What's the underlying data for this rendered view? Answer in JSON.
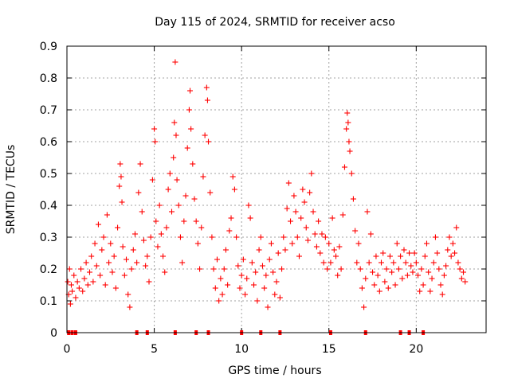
{
  "chart_data": {
    "type": "scatter",
    "title": "Day 115 of 2024, SRMTID for receiver acso",
    "xlabel": "GPS time / hours",
    "ylabel": "SRMTID / TECUs",
    "xlim": [
      0,
      24.0
    ],
    "ylim": [
      0,
      0.9
    ],
    "xticks": [
      0,
      5,
      10,
      15,
      20
    ],
    "xtick_labels": [
      "0",
      "5",
      "10",
      "15",
      "20"
    ],
    "yticks": [
      0,
      0.1,
      0.2,
      0.3,
      0.4,
      0.5,
      0.6,
      0.7,
      0.8,
      0.9
    ],
    "ytick_labels": [
      "0",
      "0.1",
      "0.2",
      "0.3",
      "0.4",
      "0.5",
      "0.6",
      "0.7",
      "0.8",
      "0.9"
    ],
    "grid": true,
    "marker": "+",
    "color": "#ff0000",
    "series": [
      {
        "name": "SRMTID",
        "points": [
          [
            0.05,
            0.16
          ],
          [
            0.1,
            0.12
          ],
          [
            0.15,
            0.2
          ],
          [
            0.2,
            0.09
          ],
          [
            0.25,
            0.15
          ],
          [
            0.3,
            0.13
          ],
          [
            0.4,
            0.18
          ],
          [
            0.5,
            0.11
          ],
          [
            0.6,
            0.16
          ],
          [
            0.7,
            0.14
          ],
          [
            0.8,
            0.2
          ],
          [
            0.9,
            0.13
          ],
          [
            1.0,
            0.17
          ],
          [
            1.1,
            0.22
          ],
          [
            1.2,
            0.15
          ],
          [
            1.3,
            0.19
          ],
          [
            1.4,
            0.24
          ],
          [
            1.5,
            0.16
          ],
          [
            1.6,
            0.28
          ],
          [
            1.7,
            0.21
          ],
          [
            1.8,
            0.34
          ],
          [
            1.9,
            0.18
          ],
          [
            2.0,
            0.26
          ],
          [
            2.1,
            0.3
          ],
          [
            2.2,
            0.15
          ],
          [
            2.3,
            0.37
          ],
          [
            2.4,
            0.22
          ],
          [
            2.5,
            0.28
          ],
          [
            2.6,
            0.19
          ],
          [
            2.7,
            0.24
          ],
          [
            2.8,
            0.14
          ],
          [
            2.9,
            0.33
          ],
          [
            3.0,
            0.46
          ],
          [
            3.05,
            0.53
          ],
          [
            3.1,
            0.49
          ],
          [
            3.15,
            0.41
          ],
          [
            3.2,
            0.27
          ],
          [
            3.3,
            0.18
          ],
          [
            3.4,
            0.23
          ],
          [
            3.5,
            0.12
          ],
          [
            3.6,
            0.08
          ],
          [
            3.7,
            0.2
          ],
          [
            3.8,
            0.26
          ],
          [
            3.9,
            0.31
          ],
          [
            4.0,
            0.22
          ],
          [
            4.1,
            0.44
          ],
          [
            4.2,
            0.53
          ],
          [
            4.3,
            0.38
          ],
          [
            4.4,
            0.29
          ],
          [
            4.5,
            0.21
          ],
          [
            4.6,
            0.24
          ],
          [
            4.7,
            0.16
          ],
          [
            4.8,
            0.3
          ],
          [
            4.9,
            0.48
          ],
          [
            5.0,
            0.64
          ],
          [
            5.05,
            0.6
          ],
          [
            5.1,
            0.35
          ],
          [
            5.2,
            0.27
          ],
          [
            5.3,
            0.4
          ],
          [
            5.4,
            0.31
          ],
          [
            5.5,
            0.24
          ],
          [
            5.6,
            0.19
          ],
          [
            5.7,
            0.33
          ],
          [
            5.8,
            0.45
          ],
          [
            5.9,
            0.5
          ],
          [
            6.0,
            0.38
          ],
          [
            6.1,
            0.55
          ],
          [
            6.15,
            0.66
          ],
          [
            6.2,
            0.85
          ],
          [
            6.25,
            0.62
          ],
          [
            6.3,
            0.48
          ],
          [
            6.4,
            0.4
          ],
          [
            6.5,
            0.3
          ],
          [
            6.6,
            0.22
          ],
          [
            6.7,
            0.35
          ],
          [
            6.8,
            0.43
          ],
          [
            6.9,
            0.58
          ],
          [
            7.0,
            0.7
          ],
          [
            7.05,
            0.76
          ],
          [
            7.1,
            0.64
          ],
          [
            7.2,
            0.53
          ],
          [
            7.3,
            0.42
          ],
          [
            7.4,
            0.35
          ],
          [
            7.5,
            0.28
          ],
          [
            7.6,
            0.2
          ],
          [
            7.7,
            0.33
          ],
          [
            7.8,
            0.49
          ],
          [
            7.9,
            0.62
          ],
          [
            8.0,
            0.77
          ],
          [
            8.05,
            0.73
          ],
          [
            8.1,
            0.6
          ],
          [
            8.2,
            0.44
          ],
          [
            8.3,
            0.3
          ],
          [
            8.4,
            0.2
          ],
          [
            8.5,
            0.14
          ],
          [
            8.6,
            0.23
          ],
          [
            8.7,
            0.1
          ],
          [
            8.8,
            0.17
          ],
          [
            8.9,
            0.12
          ],
          [
            9.0,
            0.2
          ],
          [
            9.1,
            0.26
          ],
          [
            9.2,
            0.15
          ],
          [
            9.3,
            0.32
          ],
          [
            9.4,
            0.36
          ],
          [
            9.5,
            0.49
          ],
          [
            9.6,
            0.45
          ],
          [
            9.7,
            0.3
          ],
          [
            9.8,
            0.21
          ],
          [
            9.9,
            0.14
          ],
          [
            10.0,
            0.18
          ],
          [
            10.1,
            0.23
          ],
          [
            10.2,
            0.12
          ],
          [
            10.3,
            0.17
          ],
          [
            10.4,
            0.4
          ],
          [
            10.5,
            0.36
          ],
          [
            10.6,
            0.22
          ],
          [
            10.7,
            0.15
          ],
          [
            10.8,
            0.19
          ],
          [
            10.9,
            0.1
          ],
          [
            11.0,
            0.26
          ],
          [
            11.1,
            0.3
          ],
          [
            11.2,
            0.21
          ],
          [
            11.3,
            0.14
          ],
          [
            11.4,
            0.18
          ],
          [
            11.5,
            0.08
          ],
          [
            11.6,
            0.23
          ],
          [
            11.7,
            0.28
          ],
          [
            11.8,
            0.19
          ],
          [
            11.9,
            0.12
          ],
          [
            12.0,
            0.16
          ],
          [
            12.1,
            0.25
          ],
          [
            12.2,
            0.11
          ],
          [
            12.3,
            0.2
          ],
          [
            12.4,
            0.3
          ],
          [
            12.5,
            0.26
          ],
          [
            12.6,
            0.39
          ],
          [
            12.7,
            0.47
          ],
          [
            12.8,
            0.35
          ],
          [
            12.9,
            0.28
          ],
          [
            13.0,
            0.43
          ],
          [
            13.1,
            0.38
          ],
          [
            13.2,
            0.3
          ],
          [
            13.3,
            0.24
          ],
          [
            13.4,
            0.36
          ],
          [
            13.5,
            0.45
          ],
          [
            13.6,
            0.41
          ],
          [
            13.7,
            0.33
          ],
          [
            13.8,
            0.29
          ],
          [
            13.9,
            0.44
          ],
          [
            14.0,
            0.5
          ],
          [
            14.1,
            0.38
          ],
          [
            14.2,
            0.31
          ],
          [
            14.3,
            0.27
          ],
          [
            14.4,
            0.35
          ],
          [
            14.5,
            0.25
          ],
          [
            14.6,
            0.31
          ],
          [
            14.7,
            0.22
          ],
          [
            14.8,
            0.3
          ],
          [
            14.9,
            0.2
          ],
          [
            15.0,
            0.28
          ],
          [
            15.1,
            0.22
          ],
          [
            15.2,
            0.36
          ],
          [
            15.3,
            0.26
          ],
          [
            15.4,
            0.24
          ],
          [
            15.5,
            0.18
          ],
          [
            15.6,
            0.27
          ],
          [
            15.7,
            0.2
          ],
          [
            15.8,
            0.37
          ],
          [
            15.9,
            0.52
          ],
          [
            16.0,
            0.64
          ],
          [
            16.05,
            0.69
          ],
          [
            16.1,
            0.66
          ],
          [
            16.15,
            0.6
          ],
          [
            16.2,
            0.57
          ],
          [
            16.3,
            0.5
          ],
          [
            16.4,
            0.42
          ],
          [
            16.5,
            0.32
          ],
          [
            16.6,
            0.22
          ],
          [
            16.7,
            0.28
          ],
          [
            16.8,
            0.2
          ],
          [
            16.9,
            0.14
          ],
          [
            17.0,
            0.08
          ],
          [
            17.1,
            0.17
          ],
          [
            17.2,
            0.38
          ],
          [
            17.3,
            0.22
          ],
          [
            17.4,
            0.31
          ],
          [
            17.5,
            0.19
          ],
          [
            17.6,
            0.15
          ],
          [
            17.7,
            0.24
          ],
          [
            17.8,
            0.18
          ],
          [
            17.9,
            0.13
          ],
          [
            18.0,
            0.22
          ],
          [
            18.1,
            0.25
          ],
          [
            18.2,
            0.16
          ],
          [
            18.3,
            0.2
          ],
          [
            18.4,
            0.14
          ],
          [
            18.5,
            0.24
          ],
          [
            18.6,
            0.19
          ],
          [
            18.7,
            0.22
          ],
          [
            18.8,
            0.15
          ],
          [
            18.9,
            0.28
          ],
          [
            19.0,
            0.2
          ],
          [
            19.1,
            0.24
          ],
          [
            19.2,
            0.17
          ],
          [
            19.3,
            0.26
          ],
          [
            19.4,
            0.22
          ],
          [
            19.5,
            0.18
          ],
          [
            19.6,
            0.25
          ],
          [
            19.7,
            0.21
          ],
          [
            19.8,
            0.19
          ],
          [
            19.9,
            0.25
          ],
          [
            20.0,
            0.22
          ],
          [
            20.1,
            0.18
          ],
          [
            20.2,
            0.13
          ],
          [
            20.3,
            0.2
          ],
          [
            20.4,
            0.15
          ],
          [
            20.5,
            0.24
          ],
          [
            20.6,
            0.28
          ],
          [
            20.7,
            0.19
          ],
          [
            20.8,
            0.13
          ],
          [
            20.9,
            0.17
          ],
          [
            21.0,
            0.22
          ],
          [
            21.1,
            0.3
          ],
          [
            21.2,
            0.25
          ],
          [
            21.3,
            0.2
          ],
          [
            21.4,
            0.15
          ],
          [
            21.5,
            0.12
          ],
          [
            21.6,
            0.18
          ],
          [
            21.7,
            0.21
          ],
          [
            21.8,
            0.26
          ],
          [
            21.9,
            0.3
          ],
          [
            22.0,
            0.24
          ],
          [
            22.1,
            0.28
          ],
          [
            22.2,
            0.25
          ],
          [
            22.3,
            0.33
          ],
          [
            22.4,
            0.22
          ],
          [
            22.5,
            0.2
          ],
          [
            22.6,
            0.17
          ],
          [
            22.7,
            0.19
          ],
          [
            22.8,
            0.16
          ]
        ]
      }
    ],
    "baseline_markers_x": [
      0.1,
      0.3,
      0.5,
      4.0,
      4.6,
      6.2,
      7.4,
      8.1,
      10.0,
      11.1,
      12.2,
      15.1,
      17.1,
      19.1,
      19.6,
      20.4
    ]
  }
}
